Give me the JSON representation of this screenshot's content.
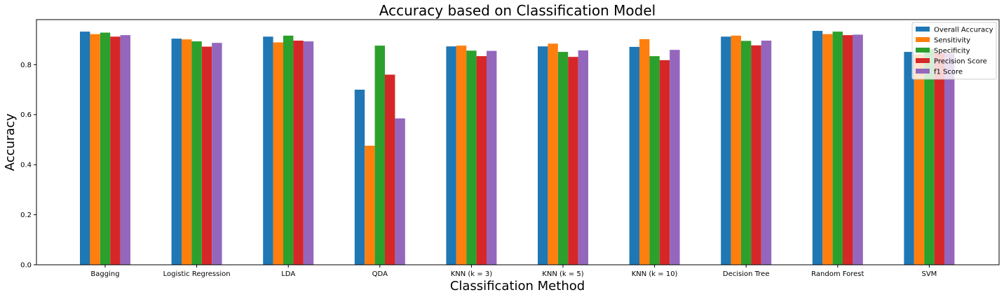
{
  "chart_data": {
    "type": "bar",
    "title": "Accuracy based on Classification Model",
    "xlabel": "Classification Method",
    "ylabel": "Accuracy",
    "ylim": [
      0,
      0.98
    ],
    "yticks": [
      "0.0",
      "0.2",
      "0.4",
      "0.6",
      "0.8"
    ],
    "ytick_values": [
      0.0,
      0.2,
      0.4,
      0.6,
      0.8
    ],
    "grid": false,
    "legend_position": "top-right",
    "categories": [
      "Bagging",
      "Logistic Regression",
      "LDA",
      "QDA",
      "KNN (k = 3)",
      "KNN (k = 5)",
      "KNN (k = 10)",
      "Decision Tree",
      "Random Forest",
      "SVM"
    ],
    "series": [
      {
        "name": "Overall Accuracy",
        "color": "#1f77b4",
        "values": [
          0.932,
          0.904,
          0.912,
          0.7,
          0.873,
          0.873,
          0.871,
          0.912,
          0.935,
          0.851
        ]
      },
      {
        "name": "Sensitivity",
        "color": "#ff7f0e",
        "values": [
          0.922,
          0.901,
          0.889,
          0.476,
          0.876,
          0.884,
          0.902,
          0.916,
          0.922,
          0.842
        ]
      },
      {
        "name": "Specificity",
        "color": "#2ca02c",
        "values": [
          0.928,
          0.893,
          0.916,
          0.876,
          0.856,
          0.851,
          0.834,
          0.895,
          0.932,
          0.862
        ]
      },
      {
        "name": "Precision Score",
        "color": "#d62728",
        "values": [
          0.912,
          0.872,
          0.896,
          0.76,
          0.834,
          0.831,
          0.818,
          0.877,
          0.918,
          0.846
        ]
      },
      {
        "name": "f1 Score",
        "color": "#9467bd",
        "values": [
          0.918,
          0.887,
          0.893,
          0.585,
          0.855,
          0.857,
          0.859,
          0.896,
          0.92,
          0.844
        ]
      }
    ]
  }
}
